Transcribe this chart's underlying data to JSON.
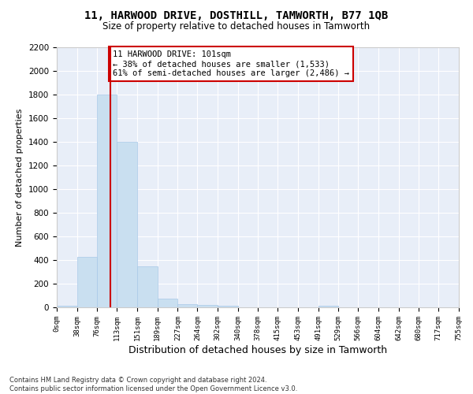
{
  "title": "11, HARWOOD DRIVE, DOSTHILL, TAMWORTH, B77 1QB",
  "subtitle": "Size of property relative to detached houses in Tamworth",
  "xlabel": "Distribution of detached houses by size in Tamworth",
  "ylabel": "Number of detached properties",
  "bar_color": "#c9dff0",
  "bar_edge_color": "#a8c8e8",
  "background_color": "#e8eef8",
  "grid_color": "#ffffff",
  "vline_x": 101,
  "vline_color": "#cc0000",
  "annotation_text": "11 HARWOOD DRIVE: 101sqm\n← 38% of detached houses are smaller (1,533)\n61% of semi-detached houses are larger (2,486) →",
  "annotation_box_color": "#ffffff",
  "annotation_box_edge_color": "#cc0000",
  "bin_edges": [
    0,
    38,
    76,
    113,
    151,
    189,
    227,
    264,
    302,
    340,
    378,
    415,
    453,
    491,
    529,
    566,
    604,
    642,
    680,
    717,
    755
  ],
  "bar_heights": [
    15,
    425,
    1800,
    1400,
    350,
    75,
    25,
    20,
    15,
    0,
    0,
    0,
    0,
    15,
    0,
    0,
    0,
    0,
    0,
    0
  ],
  "ylim": [
    0,
    2200
  ],
  "yticks": [
    0,
    200,
    400,
    600,
    800,
    1000,
    1200,
    1400,
    1600,
    1800,
    2000,
    2200
  ],
  "xlim": [
    0,
    755
  ],
  "footer_text": "Contains HM Land Registry data © Crown copyright and database right 2024.\nContains public sector information licensed under the Open Government Licence v3.0.",
  "tick_labels": [
    "0sqm",
    "38sqm",
    "76sqm",
    "113sqm",
    "151sqm",
    "189sqm",
    "227sqm",
    "264sqm",
    "302sqm",
    "340sqm",
    "378sqm",
    "415sqm",
    "453sqm",
    "491sqm",
    "529sqm",
    "566sqm",
    "604sqm",
    "642sqm",
    "680sqm",
    "717sqm",
    "755sqm"
  ]
}
